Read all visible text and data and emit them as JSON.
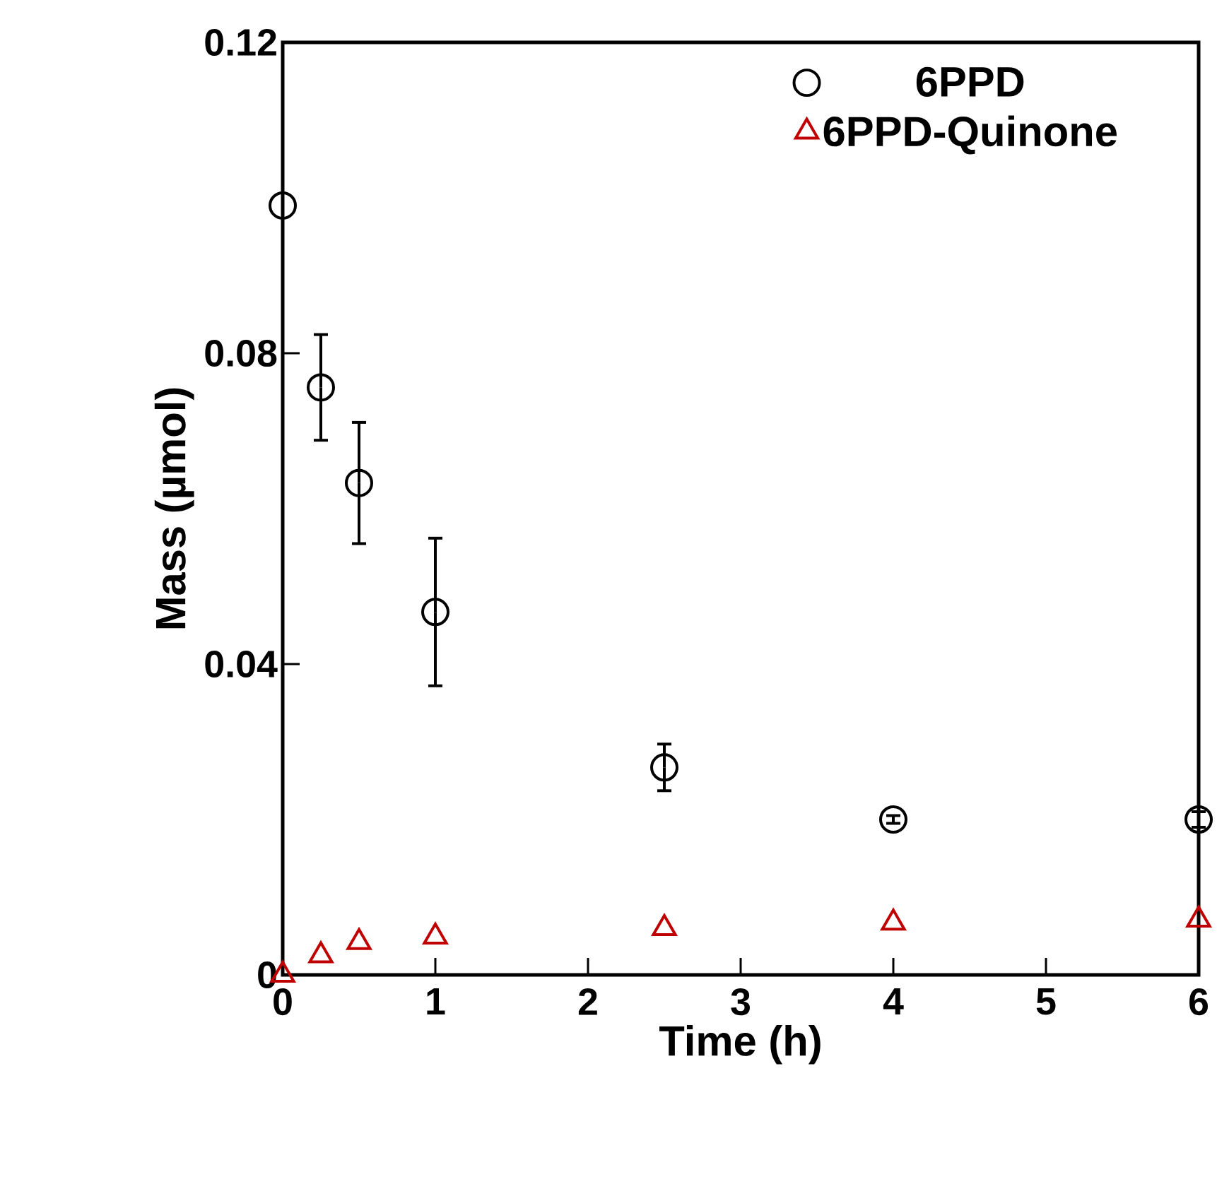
{
  "chart_data": {
    "type": "scatter",
    "xlabel": "Time (h)",
    "ylabel": "Mass (µmol)",
    "xlim": [
      0,
      6
    ],
    "ylim": [
      0,
      0.12
    ],
    "xticks": [
      0,
      1,
      2,
      3,
      4,
      5,
      6
    ],
    "yticks": [
      0,
      0.04,
      0.08,
      0.12
    ],
    "legend": "top right",
    "grid": false,
    "series": [
      {
        "name": "6PPD",
        "color": "#000000",
        "marker": "circle",
        "x": [
          0,
          0.25,
          0.5,
          1,
          2.5,
          4,
          6
        ],
        "values": [
          0.099,
          0.0756,
          0.0633,
          0.0467,
          0.0267,
          0.02,
          0.02
        ],
        "errors": [
          null,
          0.0068,
          0.0078,
          0.0095,
          0.003,
          0.0005,
          0.001
        ]
      },
      {
        "name": "6PPD-Quinone",
        "color": "#c00000",
        "marker": "triangle",
        "x": [
          0,
          0.25,
          0.5,
          1,
          2.5,
          4,
          6
        ],
        "values": [
          0,
          0.0025,
          0.0042,
          0.0049,
          0.006,
          0.0067,
          0.0071
        ]
      }
    ]
  }
}
